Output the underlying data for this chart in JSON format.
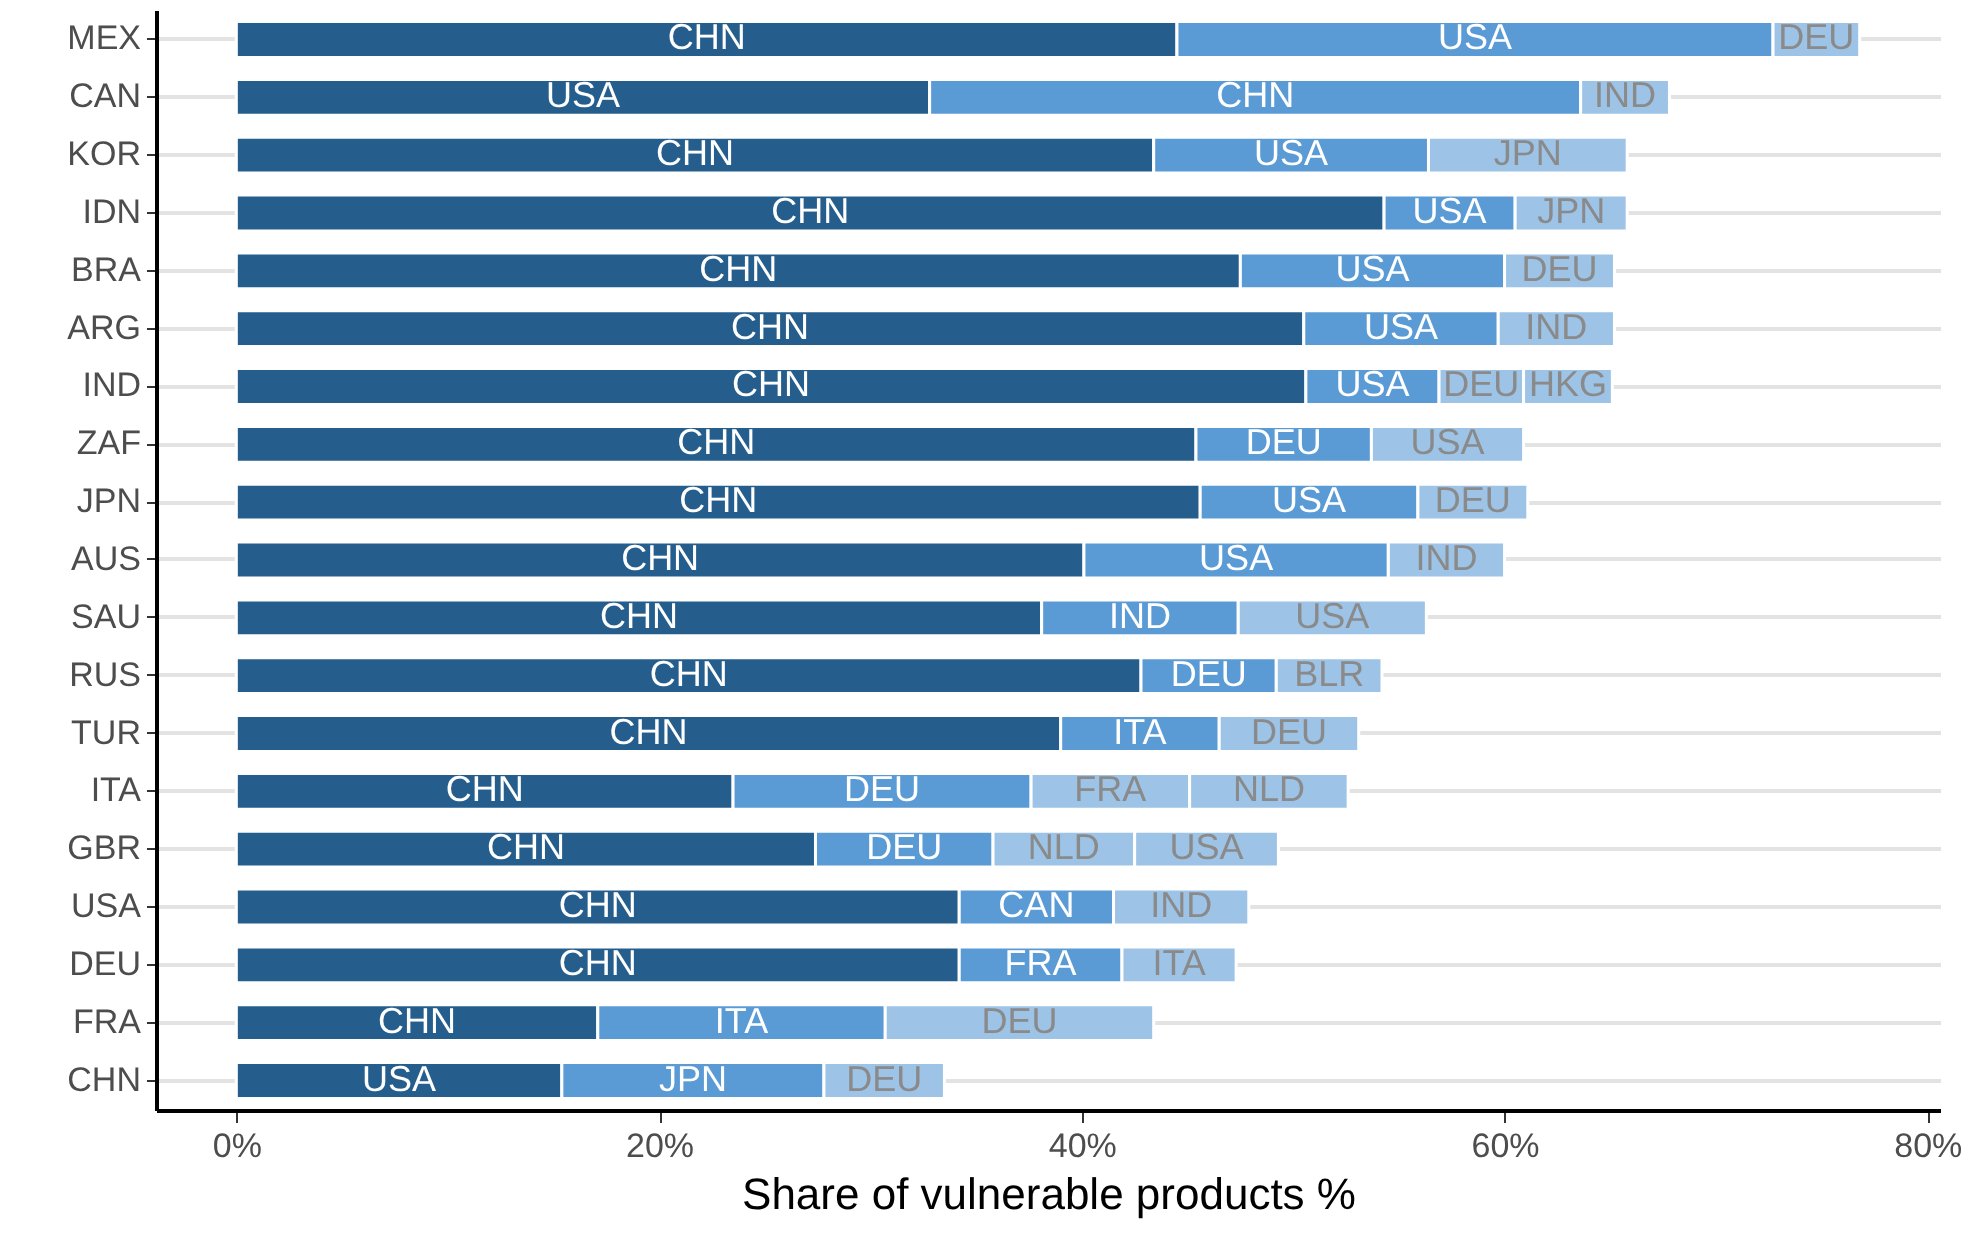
{
  "chart_data": {
    "type": "bar",
    "orientation": "horizontal",
    "stacked": true,
    "xlabel": "Share of vulnerable products %",
    "categories": [
      "MEX",
      "CAN",
      "KOR",
      "IDN",
      "BRA",
      "ARG",
      "IND",
      "ZAF",
      "JPN",
      "AUS",
      "SAU",
      "RUS",
      "TUR",
      "ITA",
      "GBR",
      "USA",
      "DEU",
      "FRA",
      "CHN"
    ],
    "series": [
      {
        "color": "#255e8d",
        "values": [
          44.5,
          32.8,
          43.4,
          54.3,
          47.5,
          50.5,
          50.6,
          45.4,
          45.6,
          40.1,
          38.1,
          42.8,
          39.0,
          23.5,
          27.4,
          34.2,
          34.2,
          17.1,
          15.4
        ],
        "value_labels": [
          "CHN",
          "USA",
          "CHN",
          "CHN",
          "CHN",
          "CHN",
          "CHN",
          "CHN",
          "CHN",
          "CHN",
          "CHN",
          "CHN",
          "CHN",
          "CHN",
          "CHN",
          "CHN",
          "CHN",
          "CHN",
          "USA"
        ]
      },
      {
        "color": "#5b9bd5",
        "values": [
          28.2,
          30.8,
          13.0,
          6.2,
          12.5,
          9.2,
          6.3,
          8.3,
          10.3,
          14.4,
          9.3,
          6.4,
          7.5,
          14.1,
          8.4,
          7.3,
          7.7,
          13.6,
          12.4
        ],
        "value_labels": [
          "USA",
          "CHN",
          "USA",
          "USA",
          "USA",
          "USA",
          "USA",
          "DEU",
          "USA",
          "USA",
          "IND",
          "DEU",
          "ITA",
          "DEU",
          "DEU",
          "CAN",
          "FRA",
          "ITA",
          "JPN"
        ]
      },
      {
        "color": "#9dc3e6",
        "values": [
          4.1,
          4.2,
          9.4,
          5.3,
          5.2,
          5.5,
          4.0,
          7.2,
          5.2,
          5.5,
          8.9,
          5.0,
          6.6,
          7.5,
          6.7,
          6.4,
          5.4,
          12.7,
          5.7
        ],
        "value_labels": [
          "DEU",
          "IND",
          "JPN",
          "JPN",
          "DEU",
          "IND",
          "DEU",
          "USA",
          "DEU",
          "IND",
          "USA",
          "BLR",
          "DEU",
          "FRA",
          "NLD",
          "IND",
          "ITA",
          "DEU",
          "DEU"
        ]
      },
      {
        "color": "#9dc3e6",
        "values": [
          null,
          null,
          null,
          null,
          null,
          null,
          4.2,
          null,
          null,
          null,
          null,
          null,
          null,
          7.5,
          6.8,
          null,
          null,
          null,
          null
        ],
        "value_labels": [
          null,
          null,
          null,
          null,
          null,
          null,
          "HKG",
          null,
          null,
          null,
          null,
          null,
          null,
          "NLD",
          "USA",
          null,
          null,
          null,
          null
        ]
      }
    ],
    "xlim": [
      -3.8,
      80.6
    ],
    "xticks": [
      {
        "value": 0,
        "label": "0%"
      },
      {
        "value": 20,
        "label": "20%"
      },
      {
        "value": 40,
        "label": "40%"
      },
      {
        "value": 60,
        "label": "60%"
      },
      {
        "value": 80,
        "label": "80%"
      }
    ],
    "grid": "y"
  }
}
